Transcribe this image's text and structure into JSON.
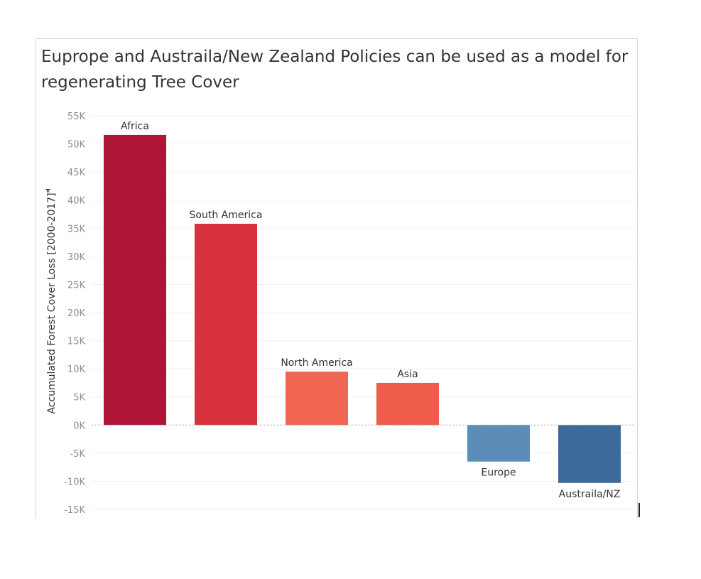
{
  "chart_data": {
    "type": "bar",
    "title": "Euprope and Austraila/New Zealand Policies can be used as a model for regenerating Tree Cover",
    "xlabel": "",
    "ylabel": "Accumulated Forest Cover Loss [2000-2017]",
    "ylim": [
      -15000,
      55000
    ],
    "yticks": [
      55000,
      50000,
      45000,
      40000,
      35000,
      30000,
      25000,
      20000,
      15000,
      10000,
      5000,
      0,
      -5000,
      -10000,
      -15000
    ],
    "ytick_labels": [
      "55K",
      "50K",
      "45K",
      "40K",
      "35K",
      "30K",
      "25K",
      "20K",
      "15K",
      "10K",
      "5K",
      "0K",
      "-5K",
      "-10K",
      "-15K"
    ],
    "categories": [
      "Africa",
      "South America",
      "North America",
      "Asia",
      "Europe",
      "Austraila/NZ"
    ],
    "values": [
      51600,
      35800,
      9500,
      7500,
      -6500,
      -10300
    ],
    "colors": [
      "#ae1438",
      "#d8323e",
      "#f16652",
      "#ef5c4c",
      "#5b8db8",
      "#3e6a99"
    ],
    "grid": true,
    "legend": "none"
  }
}
